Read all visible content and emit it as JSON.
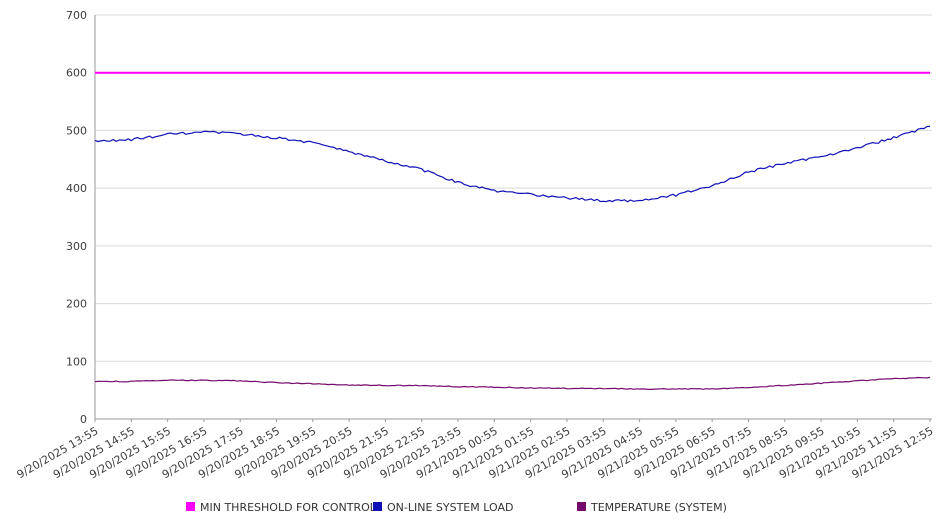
{
  "chart_data": {
    "type": "line",
    "title": "",
    "xlabel": "",
    "ylabel": "",
    "ylim": [
      0,
      700
    ],
    "ytick_step": 100,
    "grid": true,
    "legend_position": "bottom",
    "x_labels": [
      "9/20/2025 13:55",
      "9/20/2025 14:55",
      "9/20/2025 15:55",
      "9/20/2025 16:55",
      "9/20/2025 17:55",
      "9/20/2025 18:55",
      "9/20/2025 19:55",
      "9/20/2025 20:55",
      "9/20/2025 21:55",
      "9/20/2025 22:55",
      "9/20/2025 23:55",
      "9/21/2025 00:55",
      "9/21/2025 01:55",
      "9/21/2025 02:55",
      "9/21/2025 03:55",
      "9/21/2025 04:55",
      "9/21/2025 05:55",
      "9/21/2025 06:55",
      "9/21/2025 07:55",
      "9/21/2025 08:55",
      "9/21/2025 09:55",
      "9/21/2025 10:55",
      "9/21/2025 11:55",
      "9/21/2025 12:55"
    ],
    "series": [
      {
        "name": "MIN THRESHOLD FOR CONTROL",
        "color": "#ff00ff",
        "values": [
          600,
          600,
          600,
          600,
          600,
          600,
          600,
          600,
          600,
          600,
          600,
          600,
          600,
          600,
          600,
          600,
          600,
          600,
          600,
          600,
          600,
          600,
          600,
          600
        ]
      },
      {
        "name": "ON-LINE SYSTEM LOAD",
        "color": "#1010b8",
        "values": [
          481,
          484,
          493,
          497,
          494,
          487,
          479,
          463,
          447,
          432,
          410,
          395,
          389,
          383,
          378,
          379,
          388,
          404,
          428,
          443,
          455,
          470,
          487,
          507
        ]
      },
      {
        "name": "TEMPERATURE (SYSTEM)",
        "color": "#770a6e",
        "values": [
          65,
          65,
          67,
          67,
          66,
          63,
          61,
          59,
          58,
          58,
          56,
          55,
          54,
          53,
          53,
          52,
          52,
          52,
          55,
          58,
          62,
          66,
          70,
          72
        ]
      }
    ]
  },
  "colors": {
    "background": "#ffffff",
    "grid": "#d9d9d9",
    "axis": "#9a9a9a",
    "tick_text": "#3d3d3d",
    "legend_text": "#333333"
  }
}
